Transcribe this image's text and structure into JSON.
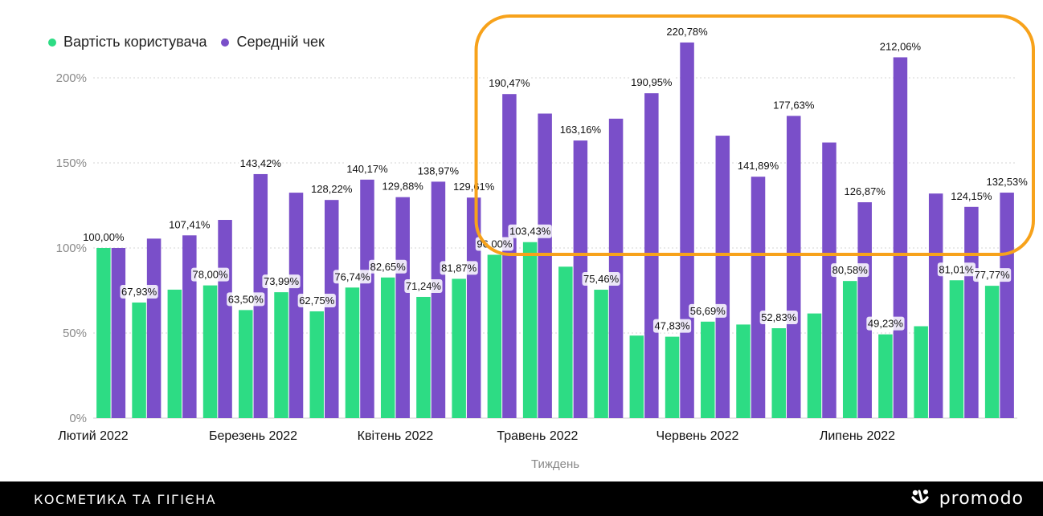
{
  "chart_data": {
    "type": "bar",
    "xlabel": "Тиждень",
    "ylabel": "",
    "ylim": [
      0,
      220
    ],
    "yticks": [
      0,
      50,
      100,
      150,
      200
    ],
    "ytick_labels": [
      "0%",
      "50%",
      "100%",
      "150%",
      "200%"
    ],
    "month_labels": [
      {
        "label": "Лютий 2022",
        "at_week": 1
      },
      {
        "label": "Березень 2022",
        "at_week": 5.5
      },
      {
        "label": "Квітень 2022",
        "at_week": 9.5
      },
      {
        "label": "Травень 2022",
        "at_week": 13.5
      },
      {
        "label": "Червень 2022",
        "at_week": 18
      },
      {
        "label": "Липень 2022",
        "at_week": 22.5
      }
    ],
    "series": [
      {
        "name": "Вартість користувача",
        "color": "#2ddc84",
        "values": [
          100.0,
          67.93,
          75.5,
          78.0,
          63.5,
          73.99,
          62.75,
          76.74,
          82.65,
          71.24,
          81.87,
          96.0,
          103.43,
          89.0,
          75.46,
          48.5,
          47.83,
          56.69,
          55.0,
          52.83,
          61.5,
          80.58,
          49.23,
          54.0,
          81.01,
          77.77
        ],
        "labels": [
          "100,00%",
          "67,93%",
          "",
          "78,00%",
          "63,50%",
          "73,99%",
          "62,75%",
          "76,74%",
          "82,65%",
          "71,24%",
          "81,87%",
          "96,00%",
          "103,43%",
          "",
          "75,46%",
          "",
          "47,83%",
          "56,69%",
          "",
          "52,83%",
          "",
          "80,58%",
          "49,23%",
          "",
          "81,01%",
          "77,77%"
        ]
      },
      {
        "name": "Середній чек",
        "color": "#7a4fc9",
        "values": [
          100.0,
          105.5,
          107.41,
          116.5,
          143.42,
          132.5,
          128.22,
          140.17,
          129.88,
          138.97,
          129.61,
          190.47,
          179.0,
          163.16,
          176.0,
          190.95,
          220.78,
          166.0,
          141.89,
          177.63,
          162.0,
          126.87,
          212.06,
          132.0,
          124.15,
          132.53
        ],
        "labels": [
          "",
          "",
          "107,41%",
          "",
          "143,42%",
          "",
          "128,22%",
          "140,17%",
          "129,88%",
          "138,97%",
          "129,61%",
          "190,47%",
          "",
          "163,16%",
          "",
          "190,95%",
          "220,78%",
          "",
          "141,89%",
          "177,63%",
          "",
          "126,87%",
          "212,06%",
          "",
          "124,15%",
          "132,53%"
        ]
      }
    ],
    "highlight_range": {
      "from_week": 12,
      "to_week": 26,
      "color": "#f7a21b"
    }
  },
  "legend": {
    "items": [
      {
        "label": "Вартість користувача",
        "color": "#2ddc84"
      },
      {
        "label": "Середній чек",
        "color": "#7a4fc9"
      }
    ]
  },
  "footer": {
    "title": "КОСМЕТИКА ТА ГІГІЄНА",
    "brand": "promodo"
  }
}
